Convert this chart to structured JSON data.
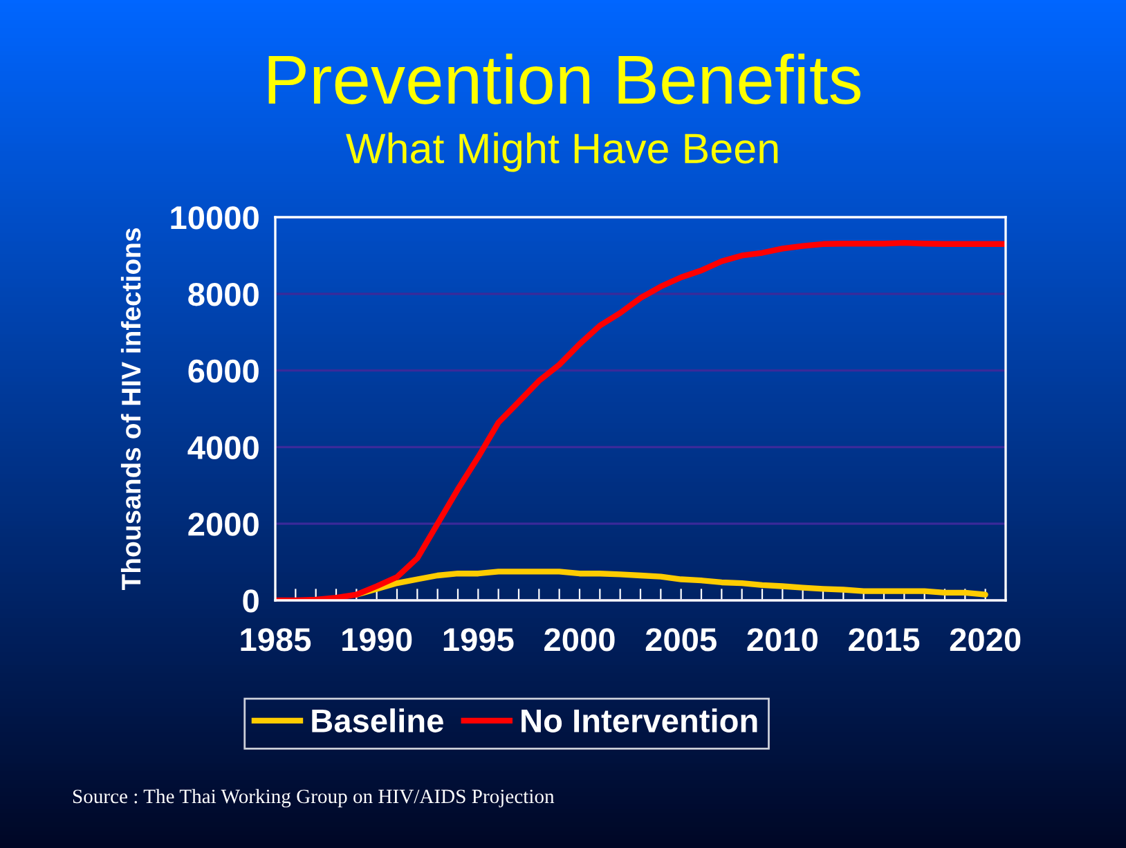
{
  "chart_data": {
    "type": "line",
    "title": "Prevention Benefits",
    "subtitle": "What Might Have Been",
    "ylabel": "Thousands of HIV infections",
    "x": [
      1985,
      1986,
      1987,
      1988,
      1989,
      1990,
      1991,
      1992,
      1993,
      1994,
      1995,
      1996,
      1997,
      1998,
      1999,
      2000,
      2001,
      2002,
      2003,
      2004,
      2005,
      2006,
      2007,
      2008,
      2009,
      2010,
      2011,
      2012,
      2013,
      2014,
      2015,
      2016,
      2017,
      2018,
      2019,
      2020,
      2021
    ],
    "series": [
      {
        "name": "Baseline",
        "color": "#ffcc00",
        "values": [
          null,
          null,
          null,
          null,
          150,
          300,
          450,
          550,
          650,
          700,
          700,
          750,
          750,
          750,
          750,
          700,
          700,
          680,
          650,
          620,
          550,
          520,
          470,
          450,
          400,
          370,
          330,
          300,
          280,
          240,
          240,
          240,
          240,
          200,
          200,
          150,
          null
        ]
      },
      {
        "name": "No Intervention",
        "color": "#ff0000",
        "values": [
          0,
          0,
          20,
          70,
          150,
          370,
          610,
          1100,
          2000,
          2900,
          3740,
          4640,
          5180,
          5730,
          6150,
          6690,
          7170,
          7500,
          7890,
          8190,
          8430,
          8610,
          8850,
          9000,
          9070,
          9180,
          9250,
          9300,
          9310,
          9310,
          9310,
          9330,
          9310,
          9300,
          9300,
          9300,
          9300
        ]
      }
    ],
    "xlim": [
      1985,
      2021
    ],
    "xticks": [
      1985,
      {
        "value": 1986,
        "label": null
      },
      {
        "value": 1987,
        "label": null
      },
      {
        "value": 1988,
        "label": null
      },
      {
        "value": 1989,
        "label": null
      },
      1990,
      {
        "value": 1991,
        "label": null
      },
      {
        "value": 1992,
        "label": null
      },
      {
        "value": 1993,
        "label": null
      },
      {
        "value": 1994,
        "label": null
      },
      1995,
      {
        "value": 1996,
        "label": null
      },
      {
        "value": 1997,
        "label": null
      },
      {
        "value": 1998,
        "label": null
      },
      {
        "value": 1999,
        "label": null
      },
      2000,
      {
        "value": 2001,
        "label": null
      },
      {
        "value": 2002,
        "label": null
      },
      {
        "value": 2003,
        "label": null
      },
      {
        "value": 2004,
        "label": null
      },
      2005,
      {
        "value": 2006,
        "label": null
      },
      {
        "value": 2007,
        "label": null
      },
      {
        "value": 2008,
        "label": null
      },
      {
        "value": 2009,
        "label": null
      },
      2010,
      {
        "value": 2011,
        "label": null
      },
      {
        "value": 2012,
        "label": null
      },
      {
        "value": 2013,
        "label": null
      },
      {
        "value": 2014,
        "label": null
      },
      2015,
      {
        "value": 2016,
        "label": null
      },
      {
        "value": 2017,
        "label": null
      },
      {
        "value": 2018,
        "label": null
      },
      {
        "value": 2019,
        "label": null
      },
      2020,
      {
        "value": 2021,
        "label": null
      }
    ],
    "ylim": [
      0,
      10000
    ],
    "yticks": [
      0,
      2000,
      4000,
      6000,
      8000,
      10000
    ],
    "grid": "y",
    "legend": "bottom",
    "marker": "none",
    "line_style": "solid",
    "annotations": [
      "Source : The Thai Working Group on HIV/AIDS Projection"
    ]
  }
}
